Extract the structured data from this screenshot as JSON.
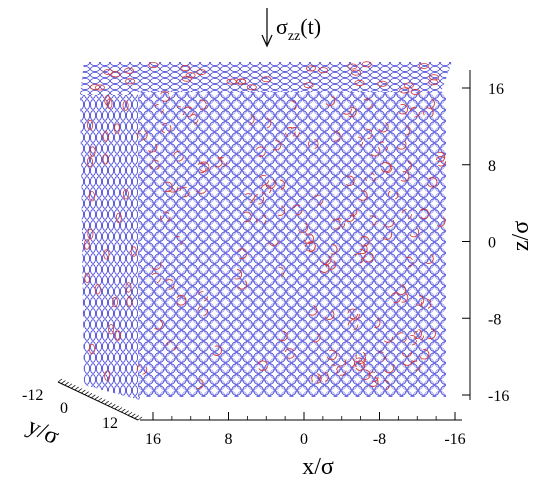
{
  "figure": {
    "load_label": "σ",
    "load_subscript": "zz",
    "load_argument": "(t)",
    "particle_colors": {
      "primary": "#3b3bd6",
      "secondary": "#d33a3a"
    },
    "axes": {
      "x": {
        "title": "x/σ",
        "ticks": [
          "16",
          "8",
          "0",
          "-8",
          "-16"
        ]
      },
      "y": {
        "title": "y/σ",
        "ticks": [
          "-12",
          "0",
          "12"
        ]
      },
      "z": {
        "title": "z/σ",
        "ticks": [
          "16",
          "8",
          "0",
          "-8",
          "-16"
        ]
      }
    }
  }
}
